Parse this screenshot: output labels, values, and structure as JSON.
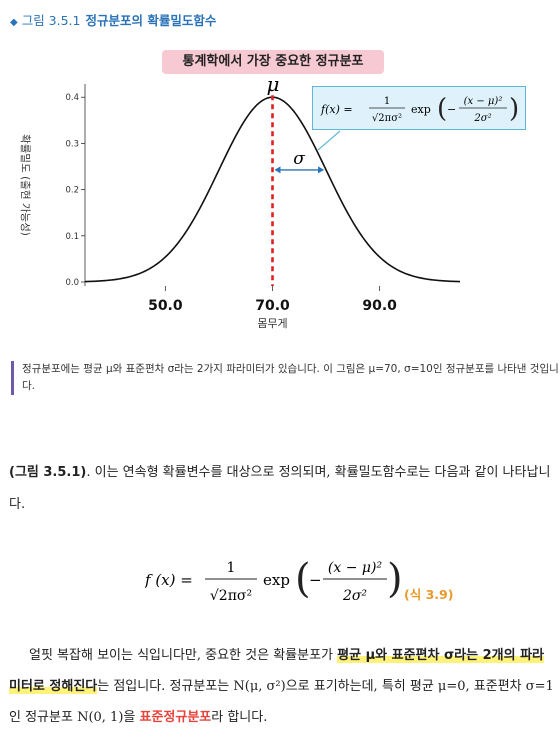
{
  "figure": {
    "marker": "◆",
    "label": "그림 3.5.1",
    "title": "정규분포의 확률밀도함수"
  },
  "chart_data": {
    "type": "line",
    "title": "통계학에서 가장 중요한 정규분포",
    "xlabel": "몸무게",
    "ylabel": "확률밀도 (출현 가능성)",
    "mean": 70,
    "sd": 10,
    "xlim": [
      35,
      105
    ],
    "ylim": [
      0,
      0.42
    ],
    "xticks": [
      "50.0",
      "70.0",
      "90.0"
    ],
    "xtick_values": [
      50,
      70,
      90
    ],
    "yticks": [
      "0.0",
      "0.1",
      "0.2",
      "0.3",
      "0.4"
    ],
    "ytick_values": [
      0,
      0.1,
      0.2,
      0.3,
      0.4
    ],
    "mu_label": "μ",
    "sigma_label": "σ",
    "line_color": "#111111",
    "mean_line_color": "#e02020",
    "sigma_arrow_color": "#2a73b8"
  },
  "formula_box": {
    "lhs": "f(x) =",
    "num": "1",
    "den": "√2πσ²",
    "exp": "exp",
    "inner_num": "(x − μ)²",
    "inner_den": "2σ²",
    "minus": "−"
  },
  "note": "정규분포에는 평균 μ와 표준편차 σ라는 2가지 파라미터가 있습니다. 이 그림은 μ=70, σ=10인 정규분포를 나타낸 것입니다.",
  "para1": {
    "ref": "(그림 3.5.1)",
    "text": ". 이는 연속형 확률변수를 대상으로 정의되며, 확률밀도함수로는 다음과 같이 나타납니다."
  },
  "equation": {
    "lhs": "f (x) =",
    "num": "1",
    "den": "√2πσ²",
    "exp": "exp",
    "inner_num": "(x − μ)²",
    "inner_den": "2σ²",
    "minus": "−",
    "label": "(식 3.9)"
  },
  "para2": {
    "t1": "얼핏 복잡해 보이는 식입니다만, 중요한 것은 확률분포가 ",
    "h1": "평균 μ와 표준편차 σ라는 2개의 파라미터로 정해진다",
    "t2": "는 점입니다. 정규분포는 N(μ, σ²)으로 표기하는데, 특히 평균 μ=0, 표준편차 σ=1인 정규분포 N(0, 1)을 ",
    "r1": "표준정규분포",
    "t3": "라 합니다."
  }
}
